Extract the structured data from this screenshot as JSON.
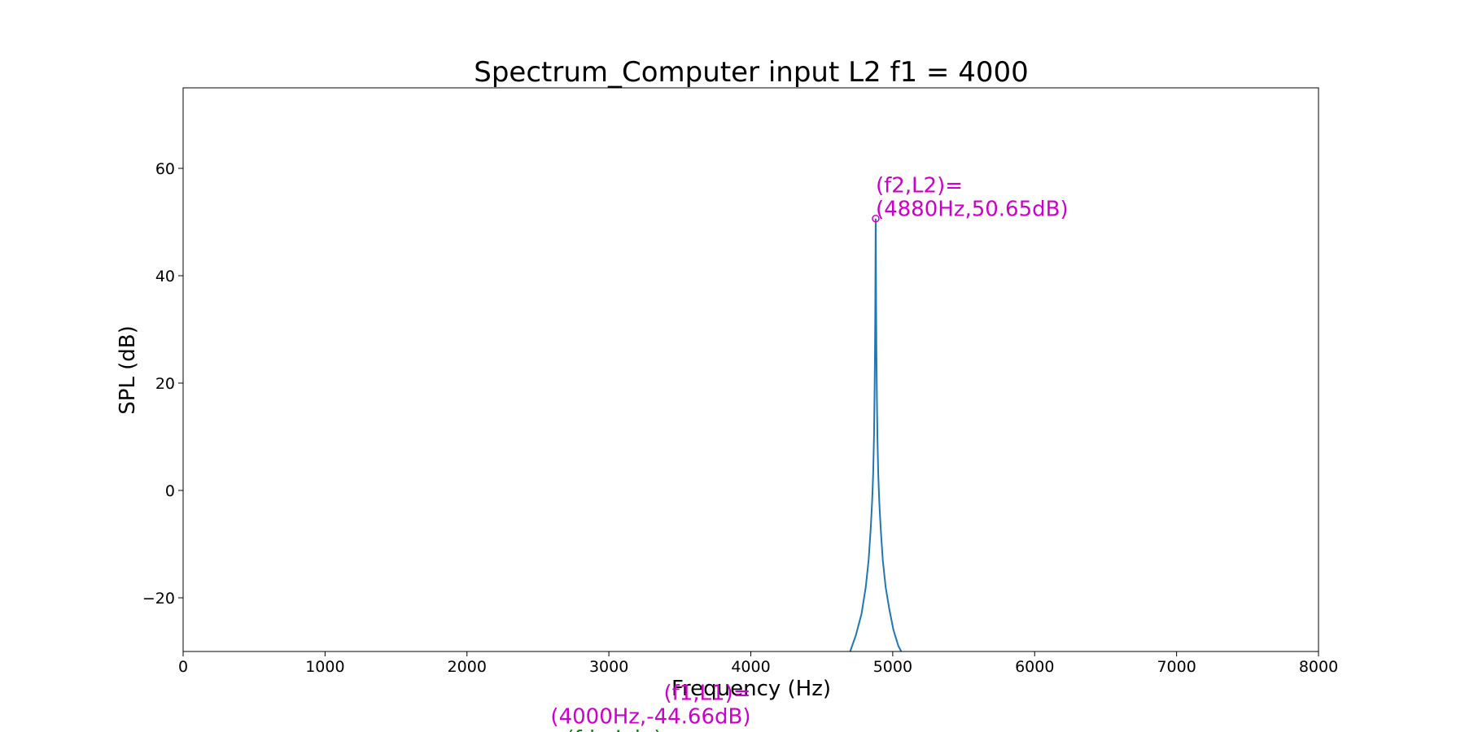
{
  "chart_data": {
    "type": "line",
    "title": "Spectrum_Computer input L2 f1 = 4000",
    "xlabel": "Frequency (Hz)",
    "ylabel": "SPL (dB)",
    "xlim": [
      0,
      8000
    ],
    "ylim": [
      -30,
      75
    ],
    "grid": false,
    "x_ticks": [
      0,
      1000,
      2000,
      3000,
      4000,
      5000,
      6000,
      7000,
      8000
    ],
    "x_tick_labels": [
      "0",
      "1000",
      "2000",
      "3000",
      "4000",
      "5000",
      "6000",
      "7000",
      "8000"
    ],
    "y_ticks": [
      -20,
      0,
      20,
      40,
      60
    ],
    "y_tick_labels": [
      "−20",
      "0",
      "20",
      "40",
      "60"
    ],
    "series": [
      {
        "color": "#1f77b4",
        "x": [
          4700,
          4740,
          4780,
          4810,
          4830,
          4845,
          4855,
          4862,
          4868,
          4872,
          4875,
          4877,
          4878,
          4879,
          4880,
          4881,
          4882,
          4883,
          4885,
          4888,
          4892,
          4898,
          4905,
          4915,
          4930,
          4950,
          4975,
          5005,
          5040,
          5060
        ],
        "y": [
          -30,
          -27,
          -23,
          -18,
          -13,
          -7,
          -2,
          3,
          10,
          18,
          26,
          34,
          40,
          46,
          50.65,
          46,
          40,
          34,
          26,
          18,
          10,
          3,
          -2,
          -7,
          -13,
          -18,
          -22,
          -26,
          -29,
          -30
        ]
      }
    ],
    "markers": [
      {
        "x": 4880,
        "y": 50.65,
        "color": "#cc00cc"
      }
    ],
    "annotations": [
      {
        "lines": [
          "(f2,L2)=",
          "(4880Hz,50.65dB)"
        ],
        "color": "#cc00cc",
        "anchor": "start",
        "x": 4880,
        "y": 55.5
      },
      {
        "lines": [
          "(f1,L1)=",
          "(4000Hz,-44.66dB)"
        ],
        "color": "#cc00cc",
        "anchor": "end",
        "x": 4000,
        "y": -39
      },
      {
        "lines": [
          "(fdp,Ldp)="
        ],
        "color": "#008800",
        "anchor": "end",
        "x": 3500,
        "y": -47.5
      }
    ]
  }
}
